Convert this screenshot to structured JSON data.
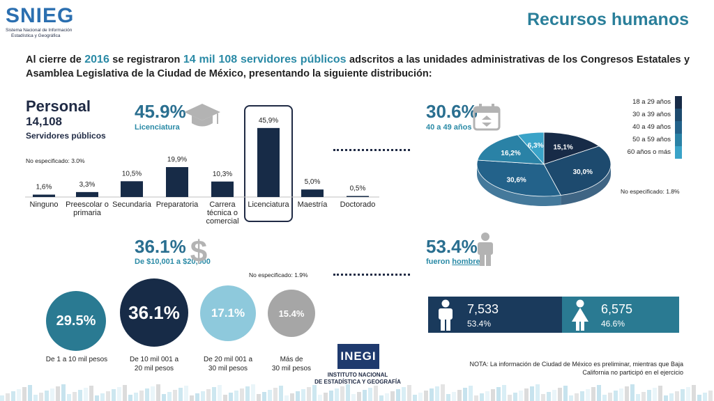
{
  "header": {
    "logo_word": "SNIEG",
    "logo_sub1": "Sistema Nacional de Información",
    "logo_sub2": "Estadística y Geográfica",
    "title": "Recursos humanos"
  },
  "intro": {
    "p1": "Al cierre de ",
    "year": "2016",
    "p2": " se registraron ",
    "count": "14 mil 108 servidores públicos",
    "p3": " adscritos a las unidades administrativas de los Congresos Estatales y Asamblea Legislativa de la Ciudad de México, presentando la siguiente distribución:"
  },
  "personal": {
    "title": "Personal",
    "count": "14,108",
    "sub": "Servidores públicos"
  },
  "education": {
    "highlight_pct": "45.9%",
    "highlight_label": "Licenciatura",
    "note": "No especificado: 3.0%"
  },
  "age": {
    "highlight_pct": "30.6%",
    "highlight_label": "40 a 49 años",
    "note": "No especificado: 1.8%",
    "legend": [
      {
        "label": "18 a 29 años",
        "color": "#172b47"
      },
      {
        "label": "30 a 39 años",
        "color": "#1d4a6e"
      },
      {
        "label": "40 a 49 años",
        "color": "#23628a"
      },
      {
        "label": "50 a 59 años",
        "color": "#2a82a6"
      },
      {
        "label": "60 años o más",
        "color": "#3aa3c8"
      }
    ]
  },
  "income": {
    "highlight_pct": "36.1%",
    "highlight_label": "De $10,001 a $20,000",
    "note": "No especificado: 1.9%",
    "circles": [
      {
        "value": "29.5%",
        "label1": "De 1 a 10 mil pesos",
        "label2": "",
        "color": "#2a7a92"
      },
      {
        "value": "36.1%",
        "label1": "De 10 mil 001 a",
        "label2": "20 mil pesos",
        "color": "#172b47"
      },
      {
        "value": "17.1%",
        "label1": "De 20 mil 001 a",
        "label2": "30 mil pesos",
        "color": "#8ec9dc"
      },
      {
        "value": "15.4%",
        "label1": "Más de",
        "label2": "30 mil pesos",
        "color": "#a6a6a6"
      }
    ]
  },
  "sex": {
    "highlight_pct": "53.4%",
    "highlight_label_a": "fueron ",
    "highlight_label_b": "hombres",
    "male_count": "7,533",
    "male_pct": "53.4%",
    "female_count": "6,575",
    "female_pct": "46.6%"
  },
  "footnote": {
    "line1": "NOTA: La información de Ciudad de México es preliminar, mientras que Baja",
    "line2": "California no participó en el ejercicio"
  },
  "inegi": {
    "word": "INEGI",
    "line1": "INSTITUTO NACIONAL",
    "line2": "DE ESTADÍSTICA Y GEOGRAFÍA"
  },
  "colors": {
    "navy": "#172b47",
    "teal": "#2a7a92",
    "accent": "#2a6f90"
  },
  "chart_data": [
    {
      "type": "bar",
      "categories": [
        "Ninguno",
        "Preescolar o primaria",
        "Secundaria",
        "Preparatoria",
        "Carrera técnica o comercial",
        "Licenciatura",
        "Maestría",
        "Doctorado"
      ],
      "category_lines": [
        [
          "Ninguno"
        ],
        [
          "Preescolar o",
          "primaria"
        ],
        [
          "Secundaria"
        ],
        [
          "Preparatoria"
        ],
        [
          "Carrera",
          "técnica o",
          "comercial"
        ],
        [
          "Licenciatura"
        ],
        [
          "Maestría"
        ],
        [
          "Doctorado"
        ]
      ],
      "values": [
        1.6,
        3.3,
        10.5,
        19.9,
        10.3,
        45.9,
        5.0,
        0.5
      ],
      "value_labels": [
        "1,6%",
        "3,3%",
        "10,5%",
        "19,9%",
        "10,3%",
        "45,9%",
        "5,0%",
        "0,5%"
      ],
      "highlight_index": 5,
      "ylim": [
        0,
        50
      ],
      "grid": false
    },
    {
      "type": "pie",
      "labels": [
        "18 a 29 años",
        "30 a 39 años",
        "40 a 49 años",
        "50 a 59 años",
        "60 años o más"
      ],
      "values": [
        15.1,
        30.0,
        30.6,
        16.2,
        6.3
      ],
      "value_labels": [
        "15,1%",
        "30,0%",
        "30,6%",
        "16,2%",
        "6,3%"
      ],
      "legend": "right"
    }
  ]
}
